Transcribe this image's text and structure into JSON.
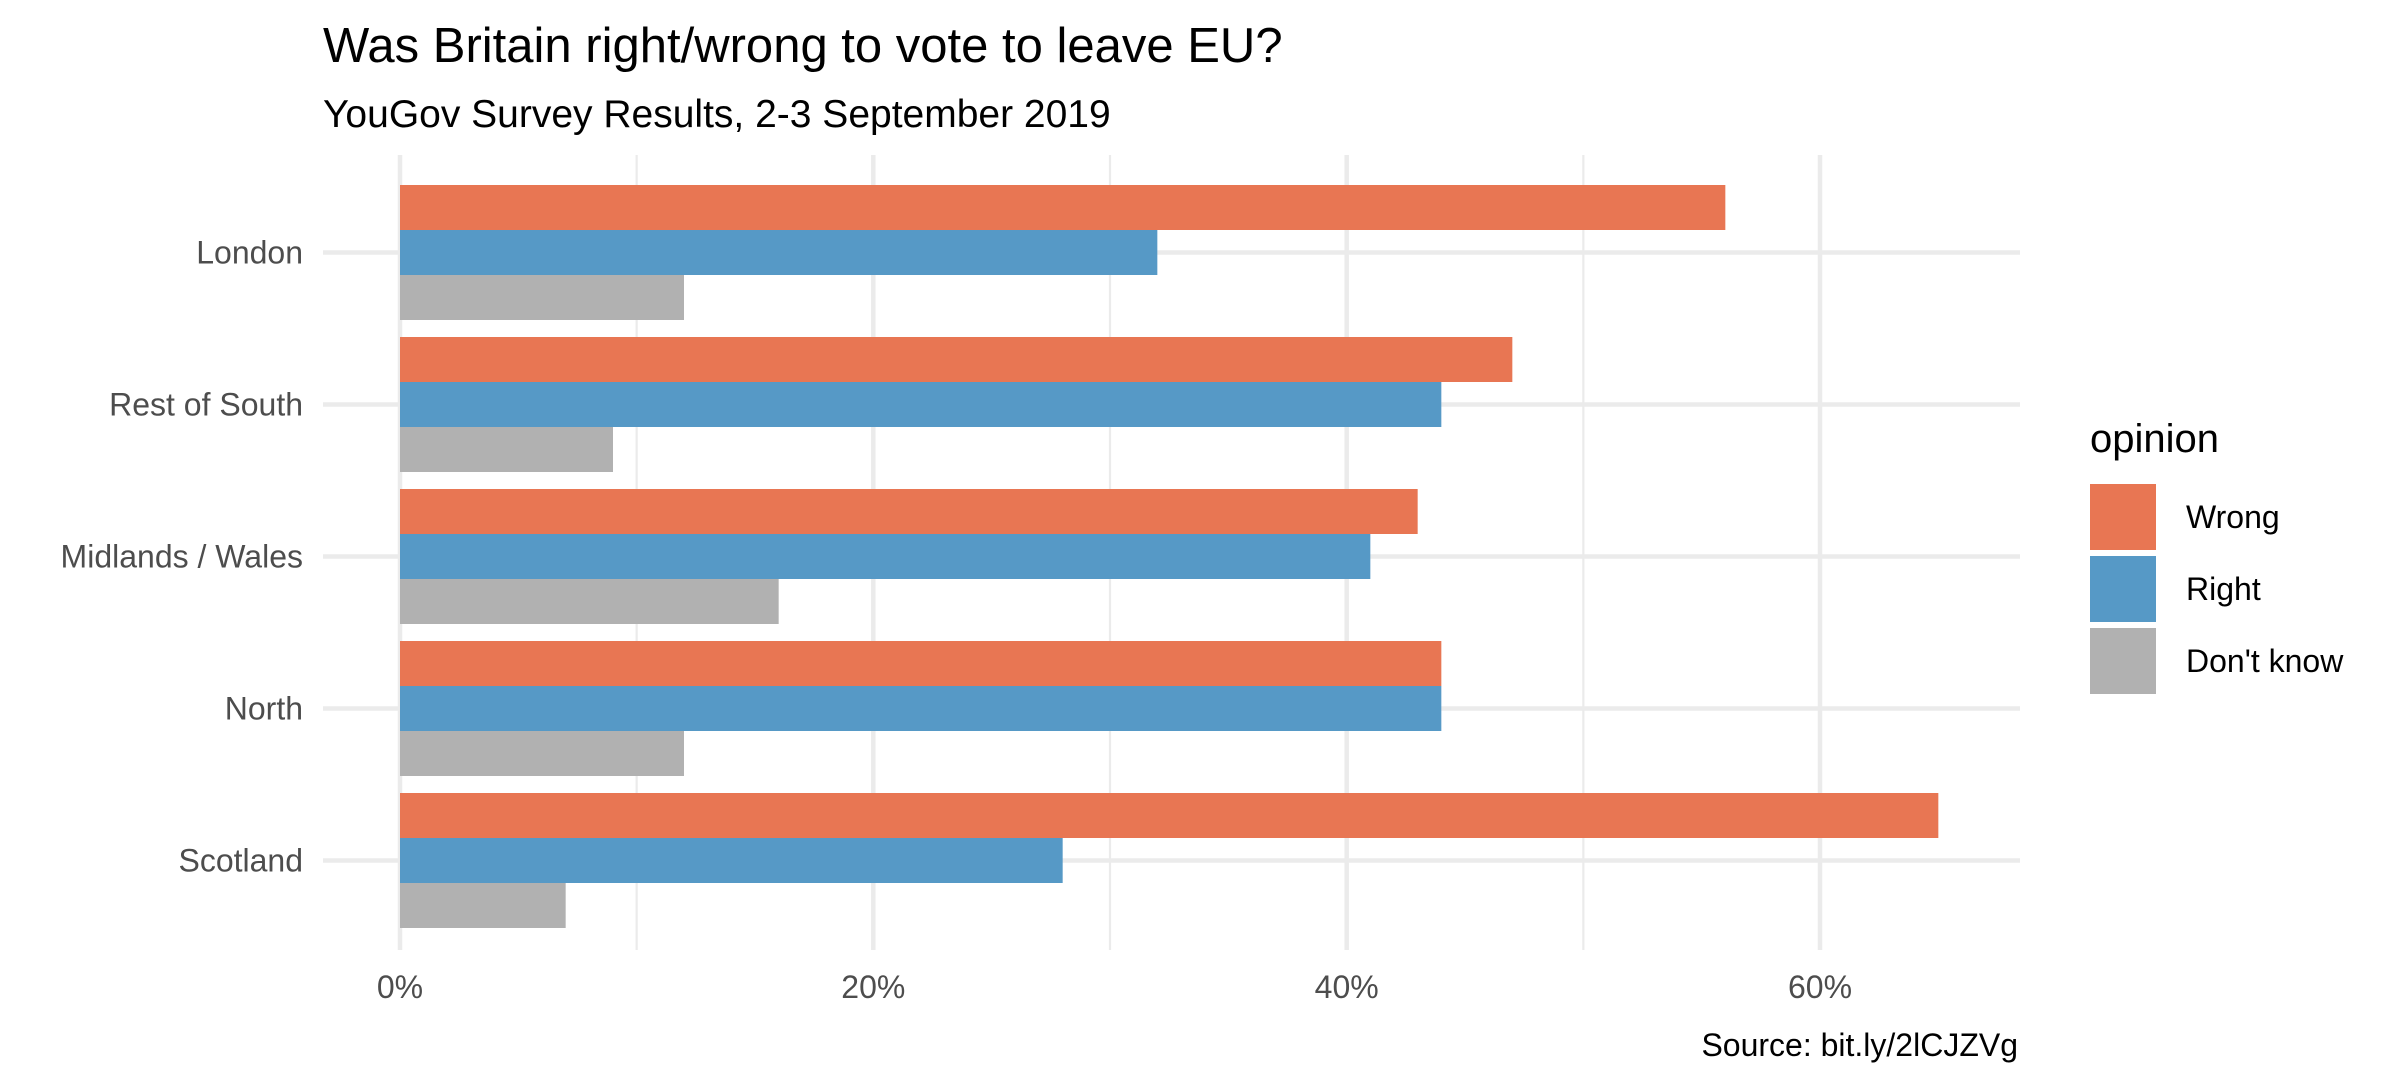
{
  "chart_data": {
    "type": "bar",
    "orientation": "horizontal",
    "title": "Was Britain right/wrong to vote to leave EU?",
    "subtitle": "YouGov Survey Results, 2-3 September 2019",
    "caption": "Source: bit.ly/2lCJZVg",
    "xlabel": "",
    "ylabel": "",
    "xlim": [
      0,
      68
    ],
    "x_ticks": [
      0,
      20,
      40,
      60
    ],
    "x_tick_labels": [
      "0%",
      "20%",
      "40%",
      "60%"
    ],
    "categories": [
      "London",
      "Rest of South",
      "Midlands / Wales",
      "North",
      "Scotland"
    ],
    "legend_title": "opinion",
    "legend_position": "right",
    "grid": true,
    "series": [
      {
        "name": "Wrong",
        "color": "#E87653",
        "values": [
          56,
          47,
          43,
          44,
          65
        ]
      },
      {
        "name": "Right",
        "color": "#5699C6",
        "values": [
          32,
          44,
          41,
          44,
          28
        ]
      },
      {
        "name": "Don't know",
        "color": "#B1B1B1",
        "values": [
          12,
          9,
          16,
          12,
          7
        ]
      }
    ]
  }
}
